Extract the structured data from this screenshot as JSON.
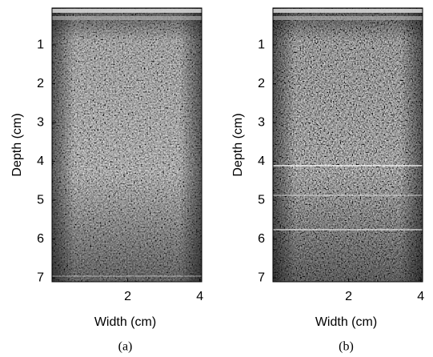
{
  "chart_data": [
    {
      "type": "image",
      "xlabel": "Width (cm)",
      "ylabel": "Depth (cm)",
      "caption": "(a)",
      "xlim": [
        -0.1,
        4.05
      ],
      "ylim": [
        0.05,
        7.1
      ],
      "y_inverted": true,
      "xticks": [
        2,
        4
      ],
      "yticks": [
        1,
        2,
        3,
        4,
        5,
        6,
        7
      ]
    },
    {
      "type": "image",
      "xlabel": "Width (cm)",
      "ylabel": "Depth (cm)",
      "caption": "(b)",
      "xlim": [
        -0.1,
        4.05
      ],
      "ylim": [
        0.05,
        7.1
      ],
      "y_inverted": true,
      "xticks": [
        2,
        4
      ],
      "yticks": [
        1,
        2,
        3,
        4,
        5,
        6,
        7
      ]
    }
  ]
}
